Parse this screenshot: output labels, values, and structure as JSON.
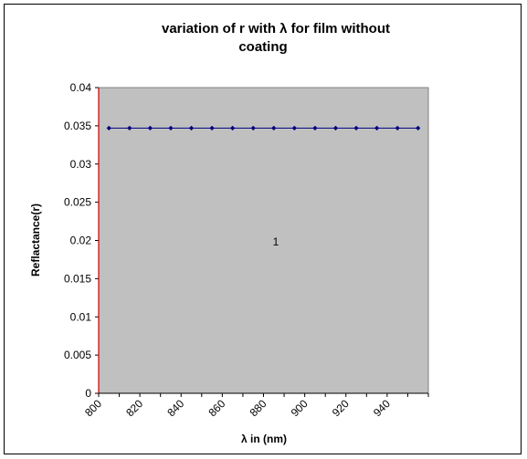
{
  "chart_data": {
    "type": "line",
    "title_lines": [
      "variation of r with λ for film without",
      "coating"
    ],
    "xlabel": "λ in (nm)",
    "ylabel": "Reflactance(r)",
    "x_tick_labels": [
      "800",
      "820",
      "840",
      "860",
      "880",
      "900",
      "920",
      "940"
    ],
    "y_tick_labels": [
      "0",
      "0.005",
      "0.01",
      "0.015",
      "0.02",
      "0.025",
      "0.03",
      "0.035",
      "0.04"
    ],
    "y_ticks": [
      0,
      0.005,
      0.01,
      0.015,
      0.02,
      0.025,
      0.03,
      0.035,
      0.04
    ],
    "ylim": [
      0,
      0.04
    ],
    "annotation": "1",
    "grid": false,
    "legend": "none",
    "plot_background": "#c0c0c0",
    "series_color": "#00007f",
    "y_axis_color": "#d00000",
    "series": [
      {
        "x": [
          805,
          815,
          825,
          835,
          845,
          855,
          865,
          875,
          885,
          895,
          905,
          915,
          925,
          935,
          945,
          955
        ],
        "y": [
          0.0347,
          0.0347,
          0.0347,
          0.0347,
          0.0347,
          0.0347,
          0.0347,
          0.0347,
          0.0347,
          0.0347,
          0.0347,
          0.0347,
          0.0347,
          0.0347,
          0.0347,
          0.0347
        ]
      }
    ]
  }
}
